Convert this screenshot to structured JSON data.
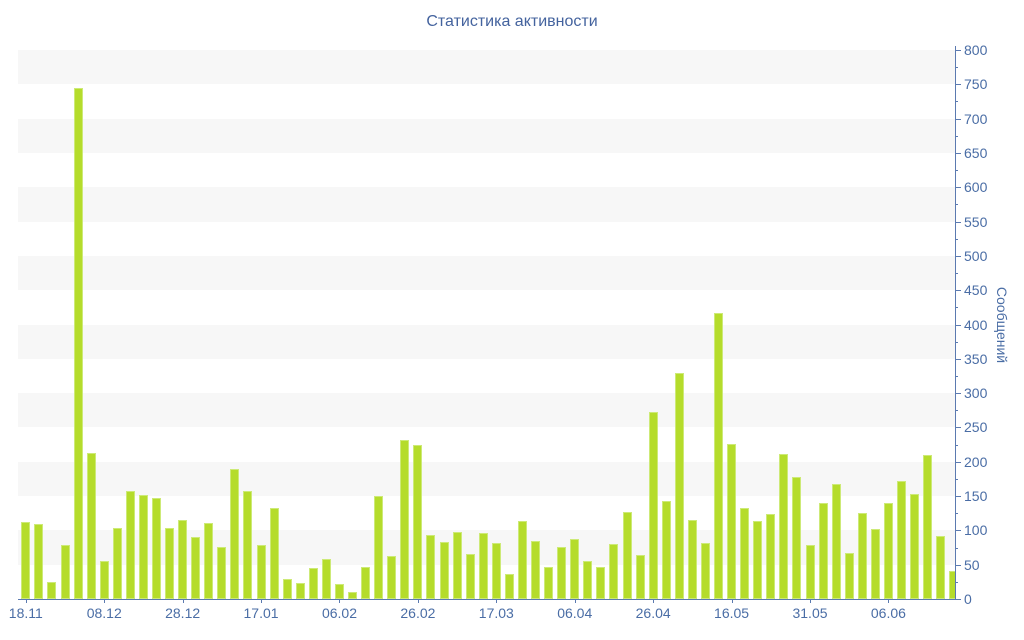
{
  "title": "Статистика активности",
  "y_axis": {
    "title": "Сообщений",
    "min": 0,
    "max": 800,
    "major_step": 50,
    "minor_step": 25,
    "labels": [
      "0",
      "50",
      "100",
      "150",
      "200",
      "250",
      "300",
      "350",
      "400",
      "450",
      "500",
      "550",
      "600",
      "650",
      "700",
      "750",
      "800"
    ]
  },
  "x_axis": {
    "tick_labels": [
      "18.11",
      "08.12",
      "28.12",
      "17.01",
      "06.02",
      "26.02",
      "17.03",
      "06.04",
      "26.04",
      "16.05",
      "31.05",
      "06.06"
    ],
    "tick_positions": [
      0,
      6,
      12,
      18,
      24,
      30,
      36,
      42,
      48,
      54,
      60,
      66
    ]
  },
  "chart_data": {
    "type": "bar",
    "title": "Статистика активности",
    "xlabel": "",
    "ylabel": "Сообщений",
    "ylim": [
      0,
      800
    ],
    "grid": "alternating horizontal bands every 50 units",
    "legend": "none",
    "bar_count": 72,
    "values": [
      112,
      110,
      25,
      79,
      745,
      213,
      55,
      103,
      158,
      152,
      147,
      104,
      115,
      91,
      111,
      76,
      189,
      157,
      78,
      133,
      29,
      23,
      45,
      58,
      22,
      10,
      47,
      150,
      63,
      231,
      224,
      93,
      83,
      97,
      66,
      96,
      81,
      37,
      113,
      84,
      47,
      76,
      88,
      55,
      46,
      80,
      127,
      64,
      272,
      143,
      329,
      115,
      82,
      417,
      226,
      132,
      113,
      124,
      211,
      178,
      78,
      140,
      167,
      67,
      126,
      102,
      140,
      172,
      153,
      210,
      92,
      41
    ],
    "x_tick_labels": [
      "18.11",
      "08.12",
      "28.12",
      "17.01",
      "06.02",
      "26.02",
      "17.03",
      "06.04",
      "26.04",
      "16.05",
      "31.05",
      "06.06"
    ],
    "x_tick_bar_indices": [
      0,
      6,
      12,
      18,
      24,
      30,
      36,
      42,
      48,
      54,
      60,
      66
    ]
  },
  "colors": {
    "bar_fill": "#b5dc2b",
    "bar_border": "#cdea77",
    "axis_line": "#5b7ab0",
    "label_text": "#4a6da5",
    "title_text": "#44639e",
    "band": "#f7f7f7",
    "background": "#ffffff"
  }
}
